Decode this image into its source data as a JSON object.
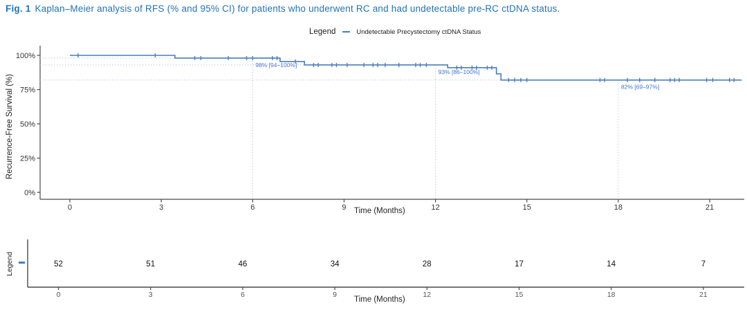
{
  "figure": {
    "label": "Fig. 1",
    "title": "Kaplan–Meier analysis of RFS (% and 95% CI) for patients who underwent RC and had undetectable pre-RC ctDNA status."
  },
  "legend": {
    "prefix": "Legend",
    "series_label": "Undetectable Precystectomy ctDNA Status"
  },
  "colors": {
    "title_blue": "#2273b9",
    "curve_blue": "#4a7cba",
    "annotation_blue": "#4473cc",
    "legend_dash_blue": "#3a7fd6",
    "reference_line": "#bcc9db",
    "axis_line": "#4a4a4a",
    "tick_text": "#333333",
    "risk_tick_text": "#555555",
    "risk_count_text": "#111111"
  },
  "chart_data": {
    "type": "line",
    "subtype": "kaplan_meier_step_curve",
    "title": "",
    "xlabel": "Time (Months)",
    "ylabel": "Recurrence-Free Survival (%)",
    "x_ticks": [
      0,
      3,
      6,
      9,
      12,
      15,
      18,
      21
    ],
    "y_ticks": [
      100,
      75,
      50,
      25,
      0
    ],
    "y_tick_labels": [
      "100%",
      "75%",
      "50%",
      "25%",
      "0%"
    ],
    "xlim": [
      -1,
      22.3
    ],
    "ylim": [
      0,
      105
    ],
    "grid": false,
    "legend_position": "top-center",
    "series": [
      {
        "name": "Undetectable Precystectomy ctDNA Status",
        "color": "#4a7cba",
        "step_points": [
          [
            0,
            100
          ],
          [
            3.45,
            98
          ],
          [
            6.9,
            95.5
          ],
          [
            7.7,
            93
          ],
          [
            12.4,
            91
          ],
          [
            14.0,
            86.5
          ],
          [
            14.15,
            82
          ]
        ],
        "curve_end_x": 22.05,
        "censor_times": [
          0.27,
          2.8,
          4.1,
          4.3,
          5.2,
          5.8,
          6.0,
          6.65,
          6.8,
          7.4,
          8.0,
          8.15,
          8.6,
          8.75,
          9.1,
          9.65,
          9.95,
          10.1,
          10.35,
          10.8,
          11.35,
          11.5,
          11.7,
          12.7,
          12.85,
          13.2,
          13.35,
          13.7,
          13.85,
          14.4,
          14.6,
          14.8,
          15.0,
          17.4,
          17.55,
          18.3,
          18.7,
          19.2,
          19.7,
          19.85,
          20.0,
          20.9,
          21.1,
          21.65,
          21.8
        ]
      }
    ],
    "annotations": [
      {
        "time": 6,
        "survival": 98,
        "label": "98% [94–100%]"
      },
      {
        "time": 12,
        "survival": 93,
        "label": "93% [86–100%]"
      },
      {
        "time": 18,
        "survival": 82,
        "label": "82% [69–97%]"
      }
    ]
  },
  "risk_table": {
    "axis_label": "Legend",
    "xlabel": "Time (Months)",
    "times": [
      0,
      3,
      6,
      9,
      12,
      15,
      18,
      21
    ],
    "at_risk": [
      52,
      51,
      46,
      34,
      28,
      17,
      14,
      7
    ]
  }
}
